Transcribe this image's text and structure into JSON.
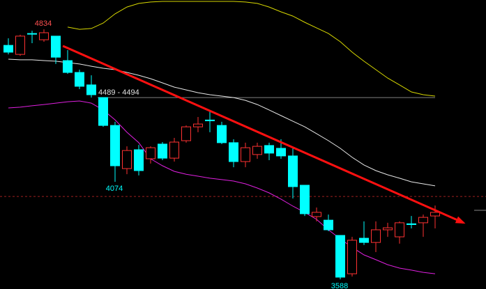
{
  "chart_data": {
    "type": "candlestick",
    "ylim": [
      3540,
      4980
    ],
    "up_color": "#ff3232",
    "down_color": "#00ffff",
    "open": [
      4754,
      4709,
      4813,
      4782,
      4800,
      4678,
      4619,
      4557,
      4494,
      4355,
      4140,
      4234,
      4189,
      4262,
      4192,
      4279,
      4348,
      4382,
      4355,
      4269,
      4175,
      4210,
      4255,
      4241,
      4203,
      4057,
      3901,
      3883,
      3807,
      3616,
      3793,
      3772,
      3835,
      3800,
      3865,
      3870,
      3904
    ],
    "high": [
      4789,
      4807,
      4827,
      4834,
      4800,
      4730,
      4633,
      4605,
      4494,
      4373,
      4251,
      4258,
      4251,
      4272,
      4293,
      4355,
      4397,
      4425,
      4373,
      4286,
      4269,
      4269,
      4269,
      4286,
      4244,
      4057,
      3946,
      3911,
      3807,
      3800,
      3877,
      3877,
      3870,
      3877,
      3904,
      3911,
      3956
    ],
    "low": [
      4709,
      4702,
      4765,
      4772,
      4661,
      4612,
      4536,
      4494,
      4348,
      4074,
      4112,
      4106,
      4165,
      4182,
      4175,
      4269,
      4321,
      4321,
      4262,
      4147,
      4147,
      4189,
      4182,
      4189,
      3991,
      3904,
      3877,
      3828,
      3588,
      3602,
      3759,
      3724,
      3800,
      3766,
      3842,
      3800,
      3842
    ],
    "close": [
      4720,
      4800,
      4810,
      4817,
      4695,
      4619,
      4550,
      4508,
      4355,
      4154,
      4230,
      4130,
      4244,
      4192,
      4272,
      4348,
      4362,
      4378,
      4269,
      4175,
      4244,
      4251,
      4217,
      4203,
      4050,
      3915,
      3922,
      3835,
      3599,
      3783,
      3772,
      3835,
      3845,
      3870,
      3861,
      3897,
      3922
    ],
    "series": [
      {
        "color": "#d8d800",
        "values": [
          null,
          null,
          null,
          null,
          null,
          4845,
          4834,
          4838,
          4865,
          4911,
          4945,
          4963,
          4970,
          4973,
          4973,
          4973,
          4973,
          4973,
          4973,
          4973,
          4970,
          4963,
          4945,
          4921,
          4900,
          4869,
          4841,
          4813,
          4772,
          4720,
          4675,
          4633,
          4591,
          4557,
          4522,
          4508,
          4501
        ]
      },
      {
        "color": "#e8e8e8",
        "values": [
          4685,
          4682,
          4682,
          4678,
          4675,
          4668,
          4661,
          4650,
          4640,
          4633,
          4619,
          4605,
          4588,
          4567,
          4546,
          4532,
          4518,
          4508,
          4501,
          4494,
          4480,
          4459,
          4432,
          4404,
          4376,
          4348,
          4314,
          4279,
          4241,
          4196,
          4158,
          4130,
          4109,
          4092,
          4074,
          4064,
          4054
        ]
      },
      {
        "color": "#e020e0",
        "values": [
          4442,
          4446,
          4453,
          4459,
          4466,
          4473,
          4477,
          4466,
          4432,
          4383,
          4321,
          4269,
          4189,
          4154,
          4126,
          4112,
          4102,
          4092,
          4085,
          4078,
          4064,
          4043,
          4019,
          3988,
          3953,
          3922,
          3887,
          3835,
          3790,
          3748,
          3710,
          3686,
          3661,
          3644,
          3634,
          3623,
          3616
        ]
      }
    ],
    "annotations": [
      {
        "value": 4834,
        "index": 3,
        "color": "#ff5050",
        "position": "above"
      },
      {
        "value": 4074,
        "index": 9,
        "color": "#00ffff",
        "position": "below"
      },
      {
        "value": 3588,
        "index": 28,
        "color": "#00ffff",
        "position": "below"
      }
    ],
    "levels": [
      {
        "label": "4489 - 4494",
        "low": 4489,
        "high": 4494,
        "start_index": 8,
        "color": "#808080"
      }
    ],
    "reference_line": {
      "value": 4001,
      "color": "#a02020"
    },
    "trend_line": {
      "from": [
        4.6,
        4751
      ],
      "to": [
        38.4,
        3870
      ],
      "color": "#ff1010"
    }
  }
}
